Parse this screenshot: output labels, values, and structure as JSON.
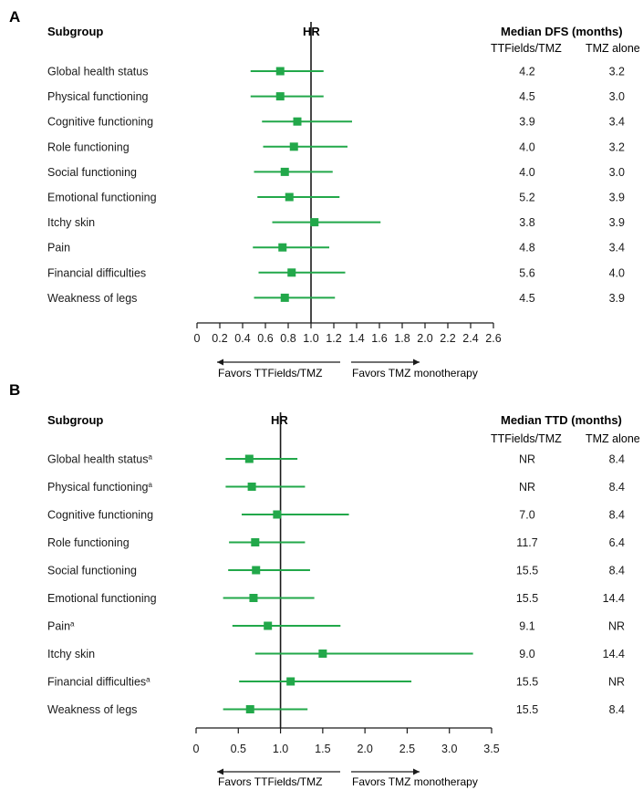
{
  "chart_data": [
    {
      "type": "forest",
      "panel": "A",
      "subgroup_header": "Subgroup",
      "hr_header": "HR",
      "median_header": "Median DFS (months)",
      "col1_header": "TTFields/TMZ",
      "col2_header": "TMZ alone",
      "xlim": [
        0,
        2.6
      ],
      "ticks": [
        "0",
        "0.2",
        "0.4",
        "0.6",
        "0.8",
        "1.0",
        "1.2",
        "1.4",
        "1.6",
        "1.8",
        "2.0",
        "2.2",
        "2.4",
        "2.6"
      ],
      "tick_values": [
        0,
        0.2,
        0.4,
        0.6,
        0.8,
        1.0,
        1.2,
        1.4,
        1.6,
        1.8,
        2.0,
        2.2,
        2.4,
        2.6
      ],
      "reference_line": 1.0,
      "favors_left": "Favors TTFields/TMZ",
      "favors_right": "Favors TMZ monotherapy",
      "rows": [
        {
          "label": "Global health status",
          "sup": "",
          "hr": 0.73,
          "lo": 0.47,
          "hi": 1.11,
          "col1": "4.2",
          "col2": "3.2"
        },
        {
          "label": "Physical functioning",
          "sup": "",
          "hr": 0.73,
          "lo": 0.47,
          "hi": 1.11,
          "col1": "4.5",
          "col2": "3.0"
        },
        {
          "label": "Cognitive functioning",
          "sup": "",
          "hr": 0.88,
          "lo": 0.57,
          "hi": 1.36,
          "col1": "3.9",
          "col2": "3.4"
        },
        {
          "label": "Role functioning",
          "sup": "",
          "hr": 0.85,
          "lo": 0.58,
          "hi": 1.32,
          "col1": "4.0",
          "col2": "3.2"
        },
        {
          "label": "Social functioning",
          "sup": "",
          "hr": 0.77,
          "lo": 0.5,
          "hi": 1.19,
          "col1": "4.0",
          "col2": "3.0"
        },
        {
          "label": "Emotional functioning",
          "sup": "",
          "hr": 0.81,
          "lo": 0.53,
          "hi": 1.25,
          "col1": "5.2",
          "col2": "3.9"
        },
        {
          "label": "Itchy skin",
          "sup": "",
          "hr": 1.03,
          "lo": 0.66,
          "hi": 1.61,
          "col1": "3.8",
          "col2": "3.9"
        },
        {
          "label": "Pain",
          "sup": "",
          "hr": 0.75,
          "lo": 0.49,
          "hi": 1.16,
          "col1": "4.8",
          "col2": "3.4"
        },
        {
          "label": "Financial difficulties",
          "sup": "",
          "hr": 0.83,
          "lo": 0.54,
          "hi": 1.3,
          "col1": "5.6",
          "col2": "4.0"
        },
        {
          "label": "Weakness of legs",
          "sup": "",
          "hr": 0.77,
          "lo": 0.5,
          "hi": 1.21,
          "col1": "4.5",
          "col2": "3.9"
        }
      ]
    },
    {
      "type": "forest",
      "panel": "B",
      "subgroup_header": "Subgroup",
      "hr_header": "HR",
      "median_header": "Median TTD (months)",
      "col1_header": "TTFields/TMZ",
      "col2_header": "TMZ alone",
      "xlim": [
        0,
        3.5
      ],
      "ticks": [
        "0",
        "0.5",
        "1.0",
        "1.5",
        "2.0",
        "2.5",
        "3.0",
        "3.5"
      ],
      "tick_values": [
        0,
        0.5,
        1.0,
        1.5,
        2.0,
        2.5,
        3.0,
        3.5
      ],
      "reference_line": 1.0,
      "favors_left": "Favors TTFields/TMZ",
      "favors_right": "Favors TMZ monotherapy",
      "rows": [
        {
          "label": "Global health status",
          "sup": "a",
          "hr": 0.63,
          "lo": 0.35,
          "hi": 1.2,
          "col1": "NR",
          "col2": "8.4"
        },
        {
          "label": "Physical functioning",
          "sup": "a",
          "hr": 0.66,
          "lo": 0.35,
          "hi": 1.29,
          "col1": "NR",
          "col2": "8.4"
        },
        {
          "label": "Cognitive functioning",
          "sup": "",
          "hr": 0.96,
          "lo": 0.54,
          "hi": 1.81,
          "col1": "7.0",
          "col2": "8.4"
        },
        {
          "label": "Role functioning",
          "sup": "",
          "hr": 0.7,
          "lo": 0.39,
          "hi": 1.29,
          "col1": "11.7",
          "col2": "6.4"
        },
        {
          "label": "Social functioning",
          "sup": "",
          "hr": 0.71,
          "lo": 0.38,
          "hi": 1.35,
          "col1": "15.5",
          "col2": "8.4"
        },
        {
          "label": "Emotional functioning",
          "sup": "",
          "hr": 0.68,
          "lo": 0.32,
          "hi": 1.4,
          "col1": "15.5",
          "col2": "14.4"
        },
        {
          "label": "Pain",
          "sup": "a",
          "hr": 0.85,
          "lo": 0.43,
          "hi": 1.71,
          "col1": "9.1",
          "col2": "NR"
        },
        {
          "label": "Itchy skin",
          "sup": "",
          "hr": 1.5,
          "lo": 0.7,
          "hi": 3.28,
          "col1": "9.0",
          "col2": "14.4"
        },
        {
          "label": "Financial difficulties",
          "sup": "a",
          "hr": 1.12,
          "lo": 0.51,
          "hi": 2.55,
          "col1": "15.5",
          "col2": "NR"
        },
        {
          "label": "Weakness of legs",
          "sup": "",
          "hr": 0.64,
          "lo": 0.32,
          "hi": 1.32,
          "col1": "15.5",
          "col2": "8.4"
        }
      ]
    }
  ],
  "colors": {
    "marker": "#22a84a",
    "ci_line": "#22a84a",
    "axis": "#1a1a1a"
  }
}
